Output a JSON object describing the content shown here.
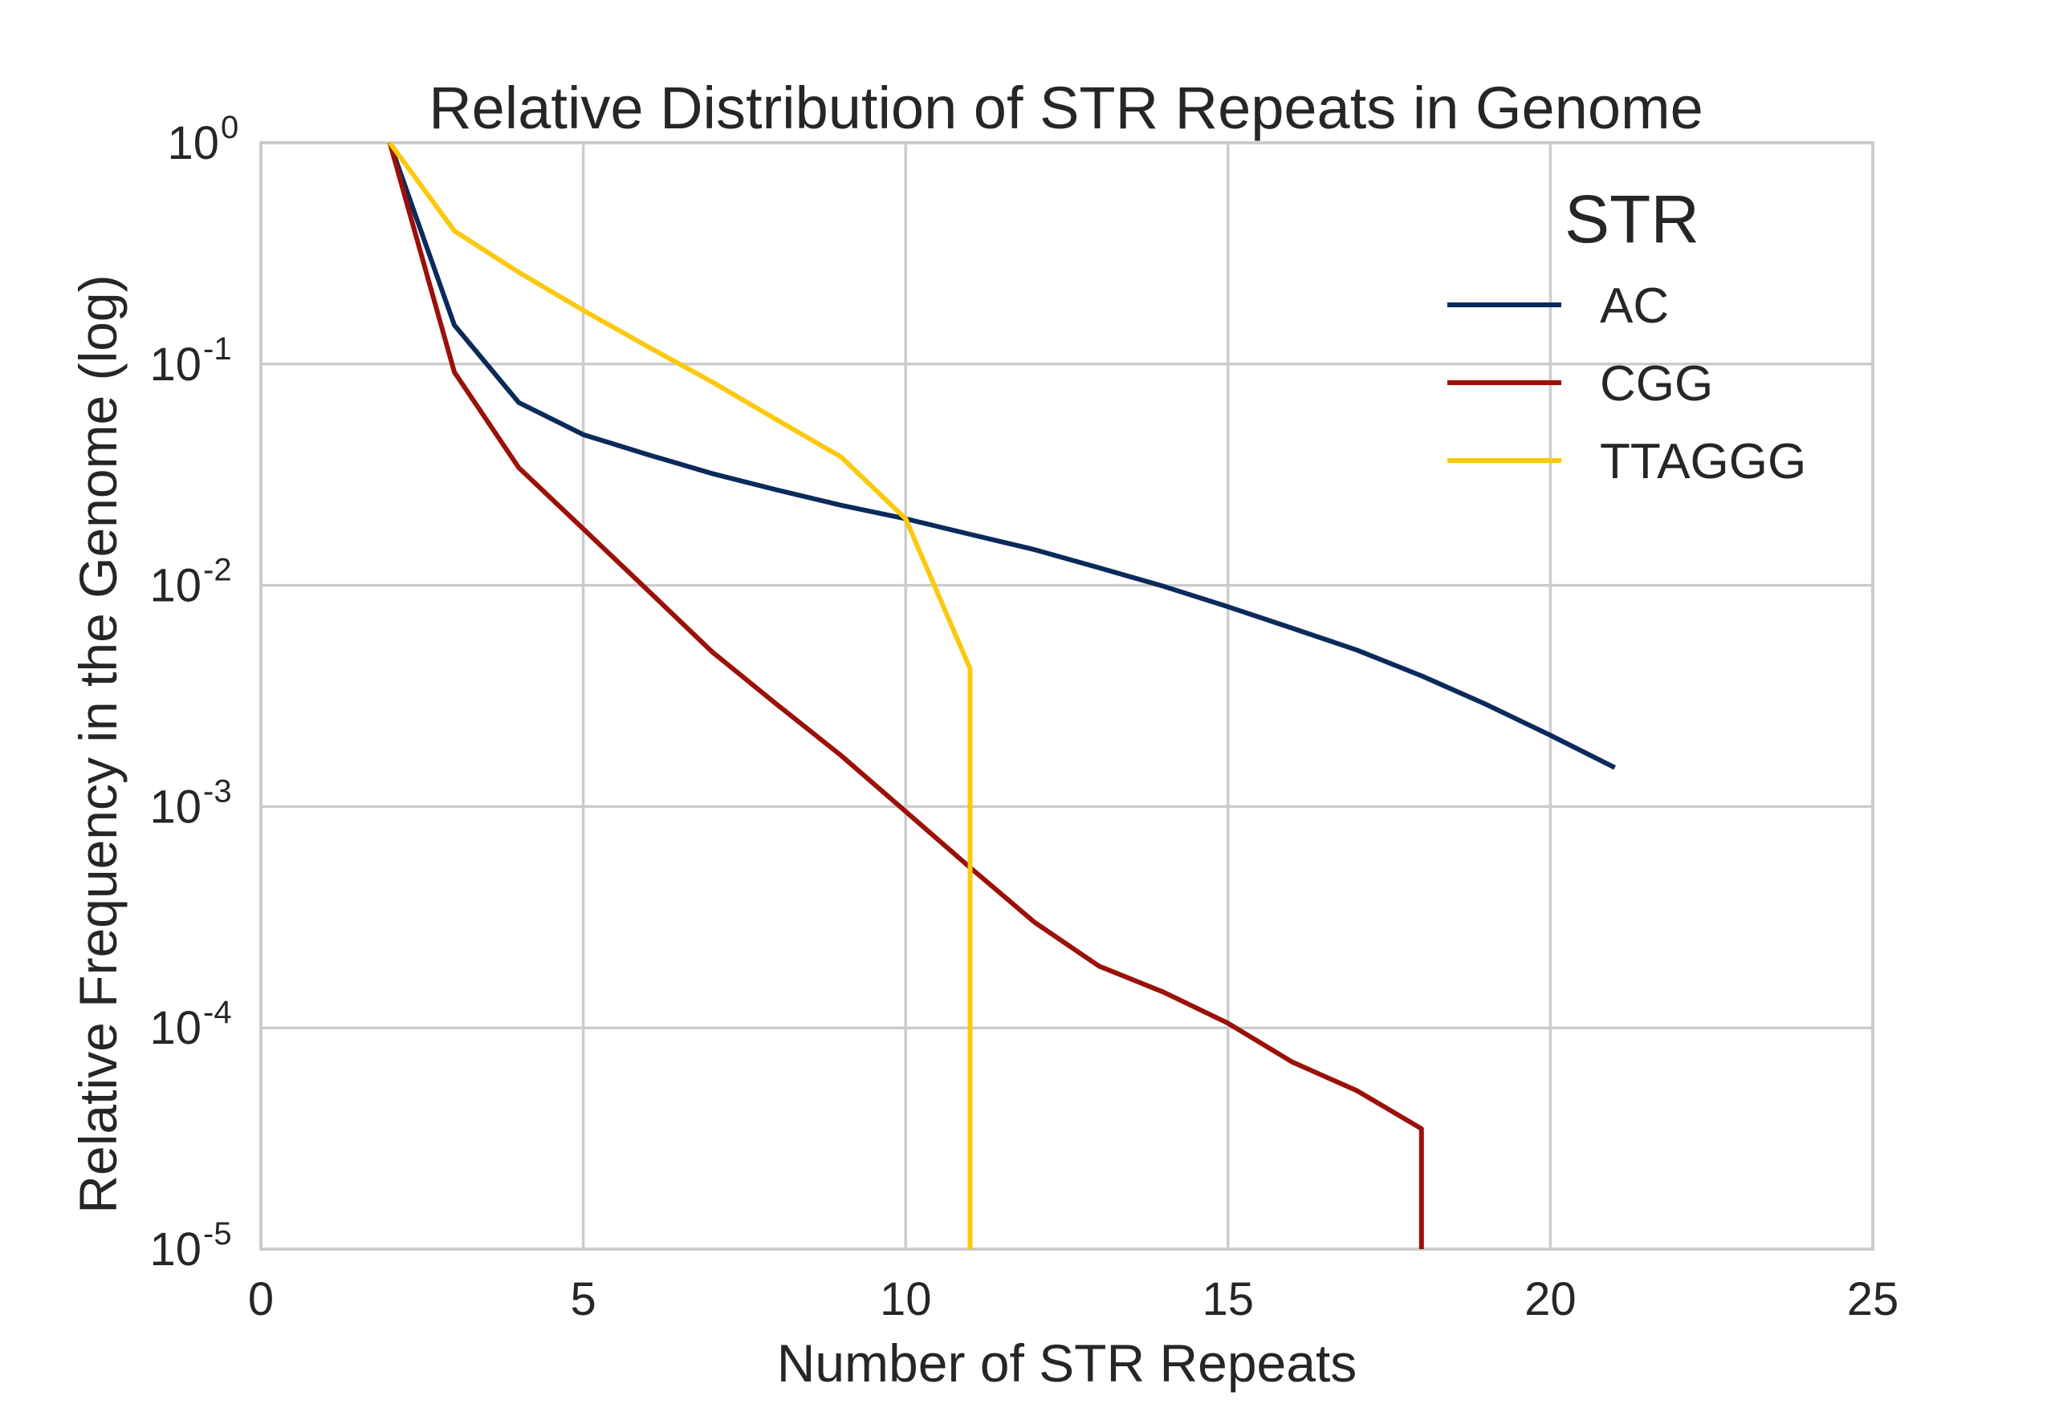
{
  "chart_data": {
    "type": "line",
    "title": "Relative Distribution of STR Repeats in Genome",
    "xlabel": "Number of STR Repeats",
    "ylabel": "Relative Frequency in the Genome (log)",
    "xlim": [
      0,
      25
    ],
    "ylim": [
      1e-05,
      1
    ],
    "yscale": "log",
    "x_ticks": [
      "0",
      "5",
      "10",
      "15",
      "20",
      "25"
    ],
    "y_ticks": [
      {
        "base": "10",
        "exp": "0"
      },
      {
        "base": "10",
        "exp": "-1"
      },
      {
        "base": "10",
        "exp": "-2"
      },
      {
        "base": "10",
        "exp": "-3"
      },
      {
        "base": "10",
        "exp": "-4"
      },
      {
        "base": "10",
        "exp": "-5"
      }
    ],
    "grid": true,
    "legend": {
      "title": "STR",
      "placement": "top-right"
    },
    "series": [
      {
        "name": "AC",
        "color": "#0b2a5c",
        "x": [
          2,
          3,
          4,
          5,
          6,
          7,
          8,
          9,
          10,
          11,
          12,
          13,
          14,
          15,
          16,
          17,
          18,
          19,
          20,
          21
        ],
        "y": [
          1.0,
          0.15,
          0.067,
          0.048,
          0.039,
          0.032,
          0.027,
          0.023,
          0.02,
          0.017,
          0.0145,
          0.012,
          0.0099,
          0.008,
          0.0064,
          0.0051,
          0.0039,
          0.0029,
          0.0021,
          0.0015
        ]
      },
      {
        "name": "CGG",
        "color": "#9b1109",
        "x": [
          2,
          3,
          4,
          5,
          6,
          7,
          8,
          9,
          10,
          11,
          12,
          13,
          14,
          15,
          16,
          17,
          18,
          18
        ],
        "y": [
          1.0,
          0.092,
          0.034,
          0.018,
          0.0095,
          0.005,
          0.0029,
          0.0017,
          0.00095,
          0.00053,
          0.0003,
          0.00019,
          0.000145,
          0.000105,
          7e-05,
          5.2e-05,
          3.5e-05,
          1e-05
        ]
      },
      {
        "name": "TTAGGG",
        "color": "#fbc90e",
        "x": [
          2,
          3,
          4,
          5,
          6,
          7,
          8,
          9,
          10,
          11,
          11
        ],
        "y": [
          1.0,
          0.4,
          0.26,
          0.175,
          0.12,
          0.083,
          0.056,
          0.038,
          0.02,
          0.0042,
          1e-05
        ]
      }
    ]
  }
}
